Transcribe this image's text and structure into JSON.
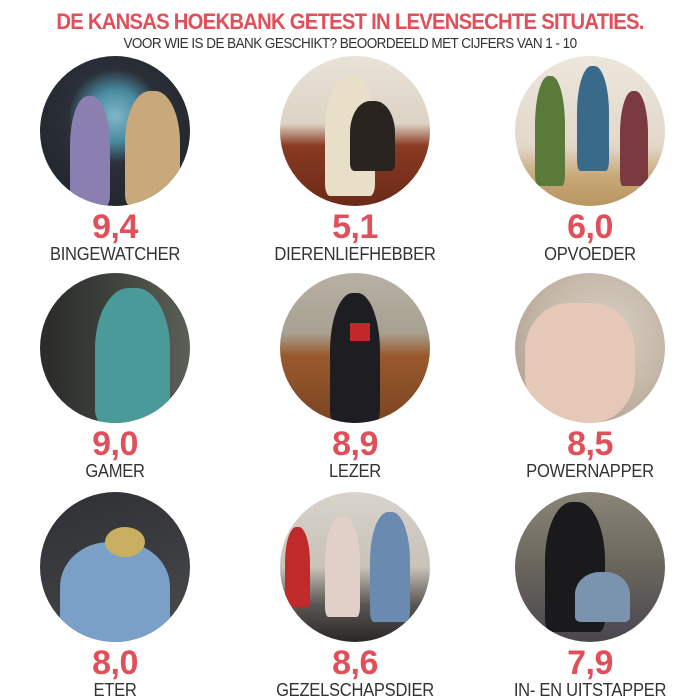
{
  "header": {
    "title": "DE KANSAS HOEKBANK GETEST IN LEVENSECHTE SITUATIES.",
    "subtitle": "VOOR WIE IS DE BANK GESCHIKT? BEOORDEELD MET CIJFERS VAN 1 - 10"
  },
  "accent_color": "#e0505a",
  "items": [
    {
      "score": "9,4",
      "label": "BINGEWATCHER"
    },
    {
      "score": "5,1",
      "label": "DIERENLIEFHEBBER"
    },
    {
      "score": "6,0",
      "label": "OPVOEDER"
    },
    {
      "score": "9,0",
      "label": "GAMER"
    },
    {
      "score": "8,9",
      "label": "LEZER"
    },
    {
      "score": "8,5",
      "label": "POWERNAPPER"
    },
    {
      "score": "8,0",
      "label": "ETER"
    },
    {
      "score": "8,6",
      "label": "GEZELSCHAPSDIER"
    },
    {
      "score": "7,9",
      "label": "IN- EN UITSTAPPER"
    }
  ]
}
